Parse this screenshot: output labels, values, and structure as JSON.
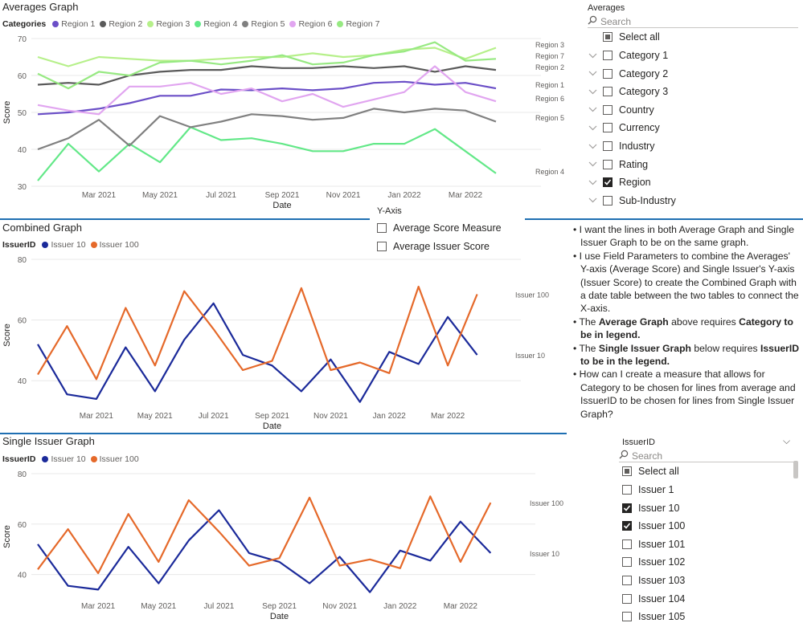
{
  "colors": {
    "region_1": "#6b4fc7",
    "region_2": "#5a5a5a",
    "region_3": "#b6f08a",
    "region_4": "#63e888",
    "region_5": "#808080",
    "region_6": "#e1a5f0",
    "region_7": "#97e982",
    "issuer_10": "#1b2a9a",
    "issuer_100": "#e5692a",
    "separator": "#1f6fb2",
    "grid": "#e8e8e8"
  },
  "averages_graph": {
    "title": "Averages Graph",
    "legend_title": "Categories",
    "legend_items": [
      "Region 1",
      "Region 2",
      "Region 3",
      "Region 4",
      "Region 5",
      "Region 6",
      "Region 7"
    ],
    "chart_data": {
      "type": "line",
      "xlabel": "Date",
      "ylabel": "Score",
      "ylim": [
        30,
        70
      ],
      "yticks": [
        30,
        40,
        50,
        60,
        70
      ],
      "x": [
        "2021-01",
        "2021-02",
        "2021-03",
        "2021-04",
        "2021-05",
        "2021-06",
        "2021-07",
        "2021-08",
        "2021-09",
        "2021-10",
        "2021-11",
        "2021-12",
        "2022-01",
        "2022-02",
        "2022-03",
        "2022-04",
        "2022-05"
      ],
      "xtick_labels": [
        "Mar 2021",
        "May 2021",
        "Jul 2021",
        "Sep 2021",
        "Nov 2021",
        "Jan 2022",
        "Mar 2022"
      ],
      "series": [
        {
          "name": "Region 1",
          "color_key": "region_1",
          "values": [
            49.5,
            50.0,
            51.0,
            52.5,
            54.5,
            54.5,
            56.2,
            56.0,
            56.5,
            56.0,
            56.5,
            58.0,
            58.3,
            57.5,
            58.0,
            56.5,
            null
          ]
        },
        {
          "name": "Region 2",
          "color_key": "region_2",
          "values": [
            57.5,
            58.0,
            57.5,
            60.0,
            61.0,
            61.5,
            61.5,
            62.5,
            62.0,
            62.0,
            62.5,
            62.0,
            62.5,
            61.0,
            62.5,
            61.5,
            null
          ]
        },
        {
          "name": "Region 3",
          "color_key": "region_3",
          "values": [
            65.0,
            62.5,
            65.0,
            64.5,
            64.0,
            64.0,
            64.5,
            65.0,
            65.0,
            66.0,
            65.0,
            65.5,
            67.0,
            67.5,
            64.5,
            67.5,
            null
          ]
        },
        {
          "name": "Region 4",
          "color_key": "region_4",
          "values": [
            31.5,
            41.5,
            34.0,
            41.5,
            36.5,
            46.0,
            42.5,
            43.0,
            41.5,
            39.5,
            39.5,
            41.5,
            41.5,
            45.5,
            39.5,
            33.5,
            null
          ]
        },
        {
          "name": "Region 5",
          "color_key": "region_5",
          "values": [
            40.0,
            43.0,
            48.0,
            41.0,
            49.0,
            46.0,
            47.5,
            49.5,
            49.0,
            48.0,
            48.5,
            51.0,
            50.0,
            51.0,
            50.5,
            47.5,
            null
          ]
        },
        {
          "name": "Region 6",
          "color_key": "region_6",
          "values": [
            52.0,
            50.5,
            49.5,
            57.0,
            57.0,
            58.0,
            55.0,
            56.5,
            53.0,
            55.0,
            51.5,
            53.5,
            55.5,
            62.5,
            55.5,
            53.0,
            null
          ]
        },
        {
          "name": "Region 7",
          "color_key": "region_7",
          "values": [
            60.5,
            56.5,
            61.0,
            60.0,
            63.5,
            64.0,
            63.0,
            64.0,
            65.5,
            63.0,
            63.5,
            65.5,
            66.5,
            69.0,
            64.0,
            64.5,
            null
          ]
        }
      ],
      "end_labels": [
        {
          "name": "Region 3",
          "value": 67.5
        },
        {
          "name": "Region 7",
          "value": 64.5
        },
        {
          "name": "Region 2",
          "value": 61.5
        },
        {
          "name": "Region 1",
          "value": 56.5
        },
        {
          "name": "Region 6",
          "value": 53.0
        },
        {
          "name": "Region 5",
          "value": 47.5
        },
        {
          "name": "Region 4",
          "value": 33.5
        }
      ]
    }
  },
  "averages_slicer": {
    "title": "Averages",
    "search_placeholder": "Search",
    "select_all": "Select all",
    "items": [
      {
        "label": "Category 1",
        "checked": false
      },
      {
        "label": "Category 2",
        "checked": false
      },
      {
        "label": "Category 3",
        "checked": false
      },
      {
        "label": "Country",
        "checked": false
      },
      {
        "label": "Currency",
        "checked": false
      },
      {
        "label": "Industry",
        "checked": false
      },
      {
        "label": "Rating",
        "checked": false
      },
      {
        "label": "Region",
        "checked": true
      },
      {
        "label": "Sub-Industry",
        "checked": false
      }
    ]
  },
  "y_axis_slicer": {
    "title": "Y-Axis",
    "items": [
      {
        "label": "Average Score Measure",
        "checked": false
      },
      {
        "label": "Average Issuer Score",
        "checked": false
      }
    ]
  },
  "combined_graph": {
    "title": "Combined Graph",
    "legend_title": "IssuerID",
    "legend_items": [
      "Issuer 10",
      "Issuer 100"
    ],
    "chart_data": {
      "type": "line",
      "xlabel": "Date",
      "ylabel": "Score",
      "ylim": [
        30,
        80
      ],
      "yticks": [
        40,
        60,
        80
      ],
      "x": [
        "2021-01",
        "2021-02",
        "2021-03",
        "2021-04",
        "2021-05",
        "2021-06",
        "2021-07",
        "2021-08",
        "2021-09",
        "2021-10",
        "2021-11",
        "2021-12",
        "2022-01",
        "2022-02",
        "2022-03",
        "2022-04",
        "2022-05"
      ],
      "xtick_labels": [
        "Mar 2021",
        "May 2021",
        "Jul 2021",
        "Sep 2021",
        "Nov 2021",
        "Jan 2022",
        "Mar 2022"
      ],
      "series": [
        {
          "name": "Issuer 10",
          "color_key": "issuer_10",
          "values": [
            52,
            35.5,
            34,
            51,
            36.5,
            53.5,
            65.5,
            48.5,
            45,
            36.5,
            47,
            33,
            49.5,
            45.5,
            61,
            48.5,
            null
          ]
        },
        {
          "name": "Issuer 100",
          "color_key": "issuer_100",
          "values": [
            42,
            58,
            40.5,
            64,
            45,
            69.5,
            57,
            43.5,
            46.5,
            70.5,
            43.5,
            46,
            42.5,
            71,
            45,
            68.5,
            null
          ]
        }
      ],
      "end_labels": [
        {
          "name": "Issuer 100",
          "value": 68.5
        },
        {
          "name": "Issuer 10",
          "value": 48.5
        }
      ]
    }
  },
  "note": {
    "lines": [
      {
        "parts": [
          {
            "t": "I want the lines in both Average Graph and Single Issuer Graph to be on the same graph.",
            "b": false
          }
        ]
      },
      {
        "parts": [
          {
            "t": "I use Field Parameters to combine the Averages' Y-axis (Average Score) and Single Issuer's Y-axis (Issuer Score) to create the Combined Graph with a date table between the two tables to connect the X-axis.",
            "b": false
          }
        ]
      },
      {
        "parts": [
          {
            "t": "The ",
            "b": false
          },
          {
            "t": "Average Graph",
            "b": true
          },
          {
            "t": " above requires ",
            "b": false
          },
          {
            "t": "Category to be in legend.",
            "b": true
          }
        ]
      },
      {
        "parts": [
          {
            "t": "The ",
            "b": false
          },
          {
            "t": "Single Issuer Graph",
            "b": true
          },
          {
            "t": " below requires ",
            "b": false
          },
          {
            "t": "IssuerID to be in the legend.",
            "b": true
          }
        ]
      },
      {
        "parts": [
          {
            "t": "How can I create a measure that allows for Category to be chosen for lines from average and IssuerID to be chosen for lines from Single Issuer Graph?",
            "b": false
          }
        ]
      }
    ]
  },
  "single_issuer_graph": {
    "title": "Single Issuer Graph",
    "legend_title": "IssuerID",
    "legend_items": [
      "Issuer 10",
      "Issuer 100"
    ],
    "chart_data": {
      "type": "line",
      "xlabel": "Date",
      "ylabel": "Score",
      "ylim": [
        30,
        80
      ],
      "yticks": [
        40,
        60,
        80
      ],
      "x": [
        "2021-01",
        "2021-02",
        "2021-03",
        "2021-04",
        "2021-05",
        "2021-06",
        "2021-07",
        "2021-08",
        "2021-09",
        "2021-10",
        "2021-11",
        "2021-12",
        "2022-01",
        "2022-02",
        "2022-03",
        "2022-04",
        "2022-05"
      ],
      "xtick_labels": [
        "Mar 2021",
        "May 2021",
        "Jul 2021",
        "Sep 2021",
        "Nov 2021",
        "Jan 2022",
        "Mar 2022"
      ],
      "series": [
        {
          "name": "Issuer 10",
          "color_key": "issuer_10",
          "values": [
            52,
            35.5,
            34,
            51,
            36.5,
            53.5,
            65.5,
            48.5,
            45,
            36.5,
            47,
            33,
            49.5,
            45.5,
            61,
            48.5,
            null
          ]
        },
        {
          "name": "Issuer 100",
          "color_key": "issuer_100",
          "values": [
            42,
            58,
            40.5,
            64,
            45,
            69.5,
            57,
            43.5,
            46.5,
            70.5,
            43.5,
            46,
            42.5,
            71,
            45,
            68.5,
            null
          ]
        }
      ],
      "end_labels": [
        {
          "name": "Issuer 100",
          "value": 68.5
        },
        {
          "name": "Issuer 10",
          "value": 48.5
        }
      ]
    }
  },
  "issuer_slicer": {
    "title": "IssuerID",
    "search_placeholder": "Search",
    "select_all": "Select all",
    "items": [
      {
        "label": "Issuer 1",
        "checked": false
      },
      {
        "label": "Issuer 10",
        "checked": true
      },
      {
        "label": "Issuer 100",
        "checked": true
      },
      {
        "label": "Issuer 101",
        "checked": false
      },
      {
        "label": "Issuer 102",
        "checked": false
      },
      {
        "label": "Issuer 103",
        "checked": false
      },
      {
        "label": "Issuer 104",
        "checked": false
      },
      {
        "label": "Issuer 105",
        "checked": false
      }
    ]
  }
}
